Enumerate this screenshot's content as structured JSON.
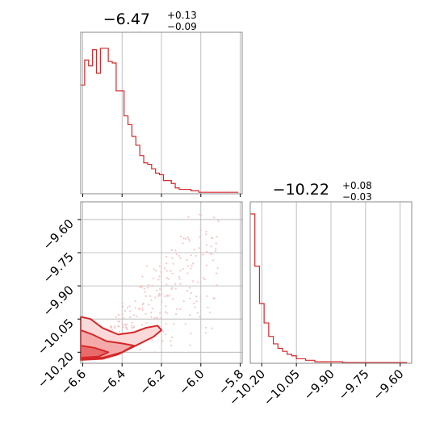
{
  "chart_data": [
    {
      "type": "histogram",
      "panel": "top-left",
      "title_value": "−6.47",
      "title_upper": "+0.13",
      "title_lower": "−0.09",
      "xlim": [
        -6.61,
        -5.79
      ],
      "grid": true,
      "color": "#d62728",
      "x": [
        -6.6,
        -6.58,
        -6.56,
        -6.54,
        -6.52,
        -6.5,
        -6.48,
        -6.46,
        -6.44,
        -6.42,
        -6.4,
        -6.38,
        -6.36,
        -6.34,
        -6.32,
        -6.3,
        -6.28,
        -6.26,
        -6.24,
        -6.22,
        -6.2,
        -6.18,
        -6.16,
        -6.14,
        -6.12,
        -6.1,
        -6.08,
        -6.06,
        -6.04,
        -6.02,
        -6.0,
        -5.98,
        -5.96,
        -5.94,
        -5.92,
        -5.9,
        -5.88,
        -5.86,
        -5.84,
        -5.82
      ],
      "values": [
        0.74,
        0.91,
        0.87,
        0.98,
        0.82,
        0.99,
        0.99,
        0.9,
        0.89,
        0.7,
        0.7,
        0.53,
        0.47,
        0.39,
        0.33,
        0.26,
        0.21,
        0.2,
        0.17,
        0.14,
        0.13,
        0.09,
        0.09,
        0.07,
        0.04,
        0.03,
        0.03,
        0.03,
        0.02,
        0.02,
        0.01,
        0.01,
        0.01,
        0.01,
        0.01,
        0.01,
        0.01,
        0.01,
        0.01,
        0.01
      ]
    },
    {
      "type": "scatter_contour",
      "panel": "bottom-left",
      "xlim": [
        -6.61,
        -5.79
      ],
      "ylim": [
        -10.25,
        -9.52
      ],
      "x_ticks": [
        -6.6,
        -6.4,
        -6.2,
        -6.0,
        -5.8
      ],
      "x_tick_labels": [
        "−6.6",
        "−6.4",
        "−6.2",
        "−6.0",
        "−5.8"
      ],
      "y_ticks": [
        -9.6,
        -9.75,
        -9.9,
        -10.05,
        -10.2
      ],
      "y_tick_labels": [
        "−9.60",
        "−9.75",
        "−9.90",
        "−10.05",
        "−10.20"
      ],
      "grid": true,
      "color": "#d62728"
    },
    {
      "type": "histogram",
      "panel": "bottom-right",
      "title_value": "−10.22",
      "title_upper": "+0.08",
      "title_lower": "−0.03",
      "xlim": [
        -10.25,
        -9.55
      ],
      "x_ticks": [
        -10.2,
        -10.05,
        -9.9,
        -9.75,
        -9.6
      ],
      "x_tick_labels": [
        "−10.20",
        "−10.05",
        "−9.90",
        "−9.75",
        "−9.60"
      ],
      "grid": true,
      "color": "#d62728",
      "x": [
        -10.24,
        -10.22,
        -10.2,
        -10.18,
        -10.16,
        -10.14,
        -10.12,
        -10.1,
        -10.08,
        -10.06,
        -10.04,
        -10.02,
        -10.0,
        -9.98,
        -9.96,
        -9.94,
        -9.92,
        -9.9,
        -9.88,
        -9.86,
        -9.84,
        -9.82,
        -9.8,
        -9.78,
        -9.76,
        -9.74,
        -9.72,
        -9.7,
        -9.68,
        -9.66,
        -9.64,
        -9.62,
        -9.6,
        -9.58
      ],
      "values": [
        1.0,
        0.65,
        0.4,
        0.27,
        0.18,
        0.13,
        0.1,
        0.08,
        0.06,
        0.05,
        0.03,
        0.03,
        0.02,
        0.02,
        0.01,
        0.01,
        0.01,
        0.01,
        0.01,
        0.01,
        0.005,
        0.005,
        0.005,
        0.005,
        0.005,
        0.005,
        0.005,
        0.005,
        0.005,
        0.005,
        0.005,
        0.005,
        0.005,
        0.005
      ]
    }
  ]
}
